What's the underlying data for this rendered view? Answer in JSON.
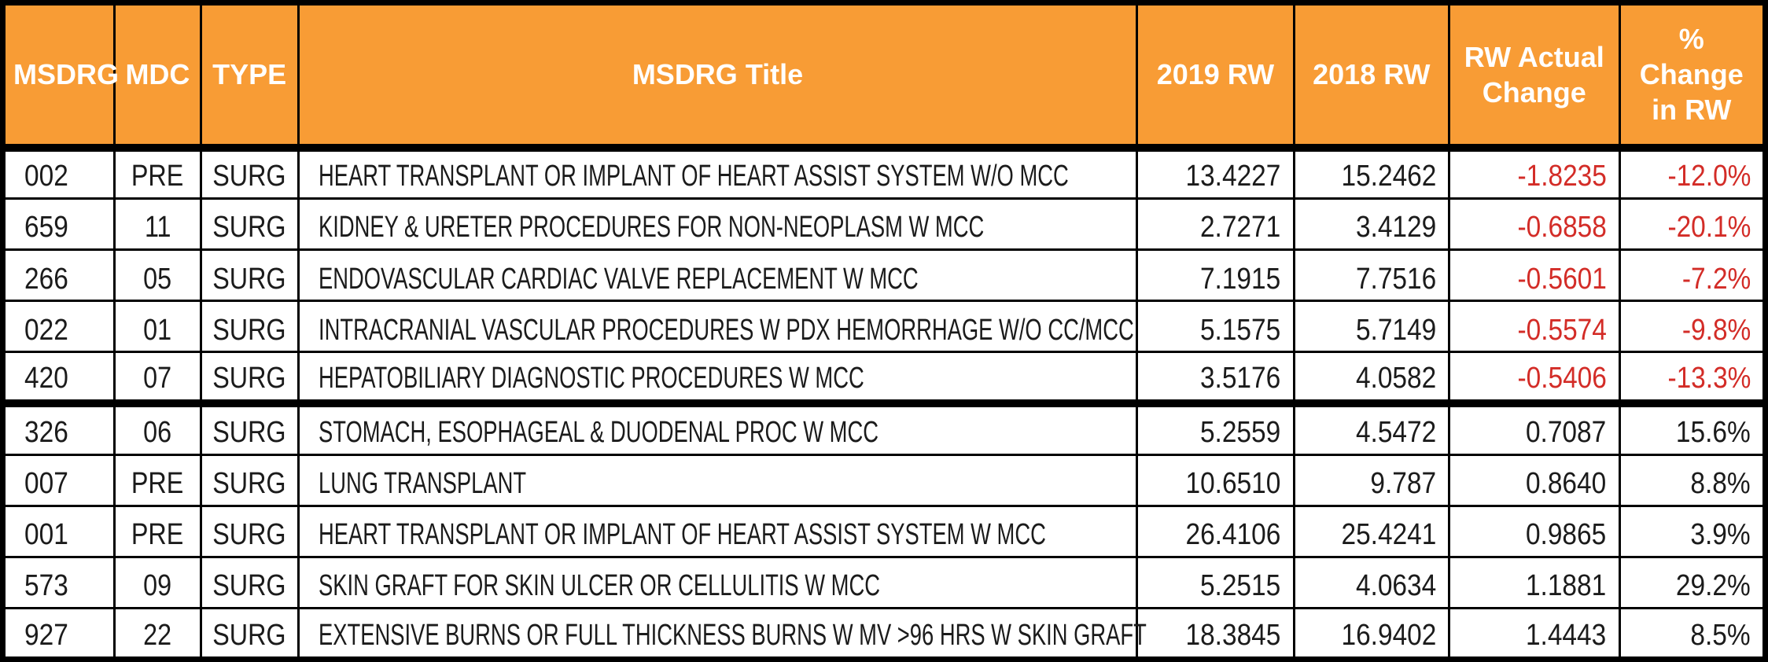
{
  "colors": {
    "header_bg": "#F89C35",
    "header_text": "#FFFFFF",
    "body_text": "#1B1B1B",
    "negative_text": "#D32C27",
    "border": "#000000",
    "row_bg": "#FFFFFF"
  },
  "table": {
    "columns": [
      {
        "key": "msdrg",
        "label": "MSDRG"
      },
      {
        "key": "mdc",
        "label": "MDC"
      },
      {
        "key": "type",
        "label": "TYPE"
      },
      {
        "key": "title",
        "label": "MSDRG Title"
      },
      {
        "key": "rw2019",
        "label": "2019 RW"
      },
      {
        "key": "rw2018",
        "label": "2018 RW"
      },
      {
        "key": "change",
        "label": "RW Actual Change"
      },
      {
        "key": "pct",
        "label": "% Change in RW"
      }
    ],
    "group_separator_after_row_index": 4,
    "rows": [
      {
        "msdrg": "002",
        "mdc": "PRE",
        "type": "SURG",
        "title": "HEART TRANSPLANT OR IMPLANT OF HEART ASSIST SYSTEM W/O MCC",
        "rw2019": "13.4227",
        "rw2018": "15.2462",
        "change": "-1.8235",
        "pct": "-12.0%",
        "negative": true
      },
      {
        "msdrg": "659",
        "mdc": "11",
        "type": "SURG",
        "title": "KIDNEY & URETER PROCEDURES FOR NON-NEOPLASM W MCC",
        "rw2019": "2.7271",
        "rw2018": "3.4129",
        "change": "-0.6858",
        "pct": "-20.1%",
        "negative": true
      },
      {
        "msdrg": "266",
        "mdc": "05",
        "type": "SURG",
        "title": "ENDOVASCULAR CARDIAC VALVE REPLACEMENT W MCC",
        "rw2019": "7.1915",
        "rw2018": "7.7516",
        "change": "-0.5601",
        "pct": "-7.2%",
        "negative": true
      },
      {
        "msdrg": "022",
        "mdc": "01",
        "type": "SURG",
        "title": "INTRACRANIAL VASCULAR PROCEDURES W PDX HEMORRHAGE W/O CC/MCC",
        "rw2019": "5.1575",
        "rw2018": "5.7149",
        "change": "-0.5574",
        "pct": "-9.8%",
        "negative": true
      },
      {
        "msdrg": "420",
        "mdc": "07",
        "type": "SURG",
        "title": "HEPATOBILIARY DIAGNOSTIC PROCEDURES W MCC",
        "rw2019": "3.5176",
        "rw2018": "4.0582",
        "change": "-0.5406",
        "pct": "-13.3%",
        "negative": true
      },
      {
        "msdrg": "326",
        "mdc": "06",
        "type": "SURG",
        "title": "STOMACH, ESOPHAGEAL & DUODENAL PROC W MCC",
        "rw2019": "5.2559",
        "rw2018": "4.5472",
        "change": "0.7087",
        "pct": "15.6%",
        "negative": false
      },
      {
        "msdrg": "007",
        "mdc": "PRE",
        "type": "SURG",
        "title": "LUNG TRANSPLANT",
        "rw2019": "10.6510",
        "rw2018": "9.787",
        "change": "0.8640",
        "pct": "8.8%",
        "negative": false
      },
      {
        "msdrg": "001",
        "mdc": "PRE",
        "type": "SURG",
        "title": "HEART TRANSPLANT OR IMPLANT OF HEART ASSIST SYSTEM W MCC",
        "rw2019": "26.4106",
        "rw2018": "25.4241",
        "change": "0.9865",
        "pct": "3.9%",
        "negative": false
      },
      {
        "msdrg": "573",
        "mdc": "09",
        "type": "SURG",
        "title": "SKIN GRAFT FOR SKIN ULCER OR CELLULITIS W MCC",
        "rw2019": "5.2515",
        "rw2018": "4.0634",
        "change": "1.1881",
        "pct": "29.2%",
        "negative": false
      },
      {
        "msdrg": "927",
        "mdc": "22",
        "type": "SURG",
        "title": "EXTENSIVE BURNS OR FULL THICKNESS BURNS W MV >96 HRS W SKIN GRAFT",
        "rw2019": "18.3845",
        "rw2018": "16.9402",
        "change": "1.4443",
        "pct": "8.5%",
        "negative": false
      }
    ]
  }
}
